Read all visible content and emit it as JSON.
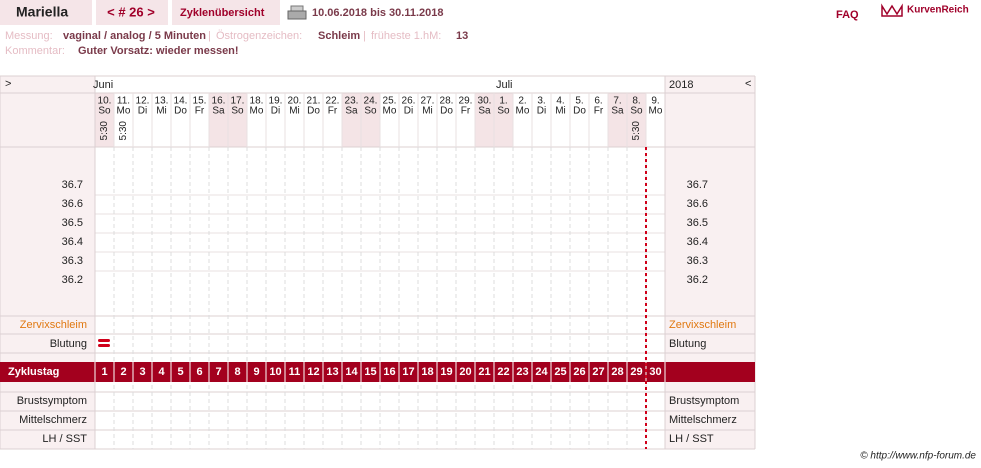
{
  "header": {
    "name": "Mariella",
    "cycle": "< # 26 >",
    "view": "Zyklenübersicht",
    "period": "10.06.2018 bis 30.11.2018",
    "faq": "FAQ",
    "logo": "KurvenReich"
  },
  "info": {
    "measurement_label": "Messung:",
    "measurement": "vaginal / analog / 5 Minuten",
    "separator": "|",
    "estrogen_label": "Östrogenzeichen:",
    "estrogen": "Schleim",
    "first_hm_label": "früheste 1.hM:",
    "first_hm": "13",
    "comment_label": "Kommentar:",
    "comment": "Guter Vorsatz: wieder messen!"
  },
  "table": {
    "nav_left": ">",
    "nav_right": "<",
    "months": [
      "Juni",
      "Juli"
    ],
    "year": "2018",
    "days": [
      {
        "date": "10.",
        "weekday": "So",
        "time": "5:30"
      },
      {
        "date": "11.",
        "weekday": "Mo",
        "time": "5:30"
      },
      {
        "date": "12.",
        "weekday": "Di"
      },
      {
        "date": "13.",
        "weekday": "Mi"
      },
      {
        "date": "14.",
        "weekday": "Do"
      },
      {
        "date": "15.",
        "weekday": "Fr"
      },
      {
        "date": "16.",
        "weekday": "Sa"
      },
      {
        "date": "17.",
        "weekday": "So"
      },
      {
        "date": "18.",
        "weekday": "Mo"
      },
      {
        "date": "19.",
        "weekday": "Di"
      },
      {
        "date": "20.",
        "weekday": "Mi"
      },
      {
        "date": "21.",
        "weekday": "Do"
      },
      {
        "date": "22.",
        "weekday": "Fr"
      },
      {
        "date": "23.",
        "weekday": "Sa"
      },
      {
        "date": "24.",
        "weekday": "So"
      },
      {
        "date": "25.",
        "weekday": "Mo"
      },
      {
        "date": "26.",
        "weekday": "Di"
      },
      {
        "date": "27.",
        "weekday": "Mi"
      },
      {
        "date": "28.",
        "weekday": "Do"
      },
      {
        "date": "29.",
        "weekday": "Fr"
      },
      {
        "date": "30.",
        "weekday": "Sa"
      },
      {
        "date": "1.",
        "weekday": "So"
      },
      {
        "date": "2.",
        "weekday": "Mo"
      },
      {
        "date": "3.",
        "weekday": "Di"
      },
      {
        "date": "4.",
        "weekday": "Mi"
      },
      {
        "date": "5.",
        "weekday": "Do"
      },
      {
        "date": "6.",
        "weekday": "Fr"
      },
      {
        "date": "7.",
        "weekday": "Sa"
      },
      {
        "date": "8.",
        "weekday": "So",
        "time": "5:30"
      },
      {
        "date": "9.",
        "weekday": "Mo"
      }
    ],
    "temperatures": [
      "36.7",
      "36.6",
      "36.5",
      "36.4",
      "36.3",
      "36.2"
    ],
    "rows": {
      "cervix": "Zervixschleim",
      "bleeding": "Blutung",
      "cycle_day": "Zyklustag",
      "breast": "Brustsymptom",
      "pain": "Mittelschmerz",
      "lh": "LH / SST"
    },
    "cycle_days": [
      1,
      2,
      3,
      4,
      5,
      6,
      7,
      8,
      9,
      10,
      11,
      12,
      13,
      14,
      15,
      16,
      17,
      18,
      19,
      20,
      21,
      22,
      23,
      24,
      25,
      26,
      27,
      28,
      29,
      30
    ]
  },
  "footer": "© http://www.nfp-forum.de"
}
